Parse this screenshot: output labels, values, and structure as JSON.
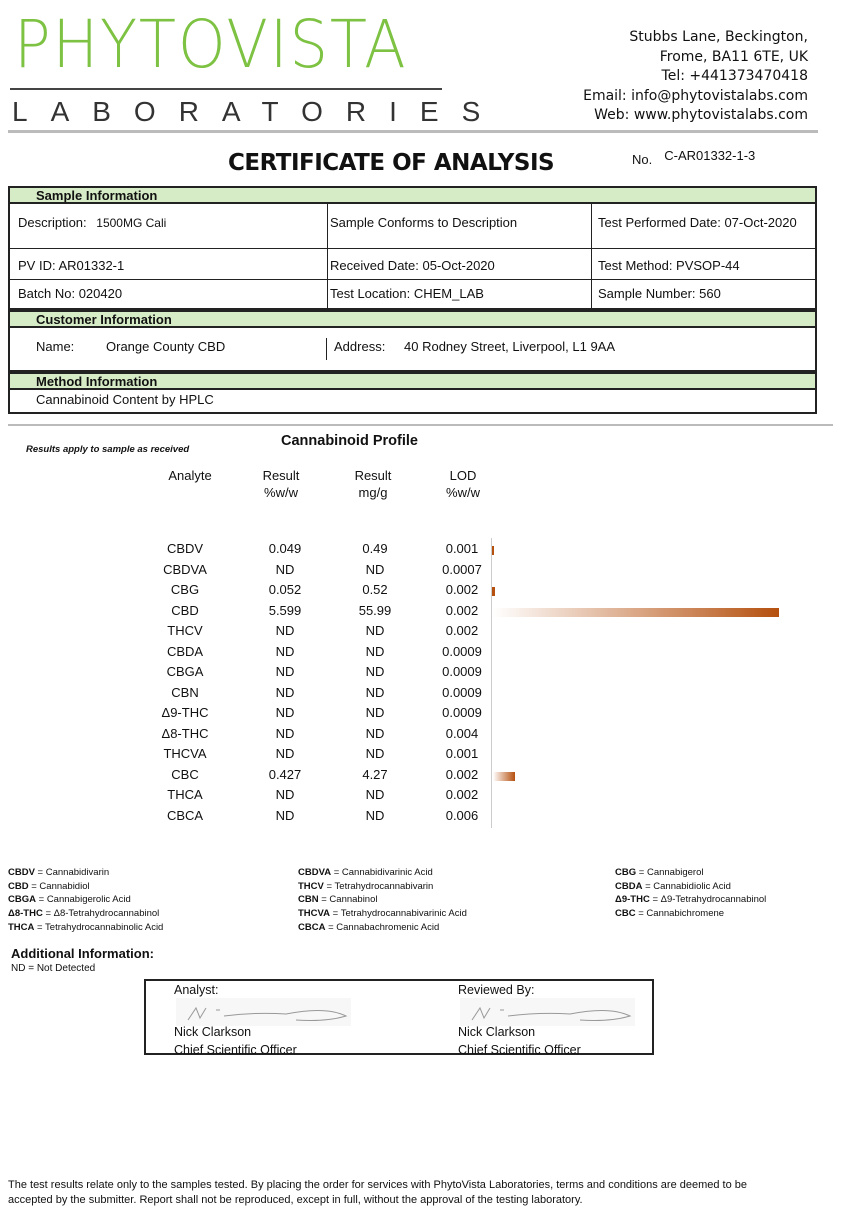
{
  "header": {
    "logo_main": "PHYTOVISTA",
    "logo_sub": "LABORATORIES",
    "address": [
      "Stubbs Lane, Beckington,",
      "Frome, BA11 6TE, UK",
      "Tel: +441373470418",
      "Email: info@phytovistalabs.com",
      "Web: www.phytovistalabs.com"
    ]
  },
  "title": "CERTIFICATE OF ANALYSIS",
  "cert_no_label": "No.",
  "cert_no": "C-AR01332-1-3",
  "sample": {
    "heading": "Sample Information",
    "description": "Description:",
    "description_value": "1500MG Cali",
    "conforms": "Sample Conforms to Description",
    "test_date": "Test Performed Date: 07-Oct-2020",
    "pv_id": "PV ID: AR01332-1",
    "received": "Received Date:  05-Oct-2020",
    "method": "Test Method: PVSOP-44",
    "batch": "Batch No: 020420",
    "location": "Test Location: CHEM_LAB",
    "sample_number": "Sample Number:  560"
  },
  "customer": {
    "heading": "Customer Information",
    "name_label": "Name:",
    "name": "Orange County CBD",
    "address_label": "Address:",
    "address": "40 Rodney Street, Liverpool, L1 9AA"
  },
  "method": {
    "heading": "Method Information",
    "value": "Cannabinoid Content by HPLC"
  },
  "profile": {
    "note": "Results apply to sample as received",
    "title": "Cannabinoid Profile",
    "columns": [
      "Analyte",
      "Result\n%w/w",
      "Result\nmg/g",
      "LOD\n%w/w"
    ],
    "bar_color": "#b5500f",
    "rows": [
      {
        "analyte": "CBDV",
        "pct": "0.049",
        "mg": "0.49",
        "lod": "0.001",
        "value": 0.049
      },
      {
        "analyte": "CBDVA",
        "pct": "ND",
        "mg": "ND",
        "lod": "0.0007",
        "value": 0
      },
      {
        "analyte": "CBG",
        "pct": "0.052",
        "mg": "0.52",
        "lod": "0.002",
        "value": 0.052
      },
      {
        "analyte": "CBD",
        "pct": "5.599",
        "mg": "55.99",
        "lod": "0.002",
        "value": 5.599
      },
      {
        "analyte": "THCV",
        "pct": "ND",
        "mg": "ND",
        "lod": "0.002",
        "value": 0
      },
      {
        "analyte": "CBDA",
        "pct": "ND",
        "mg": "ND",
        "lod": "0.0009",
        "value": 0
      },
      {
        "analyte": "CBGA",
        "pct": "ND",
        "mg": "ND",
        "lod": "0.0009",
        "value": 0
      },
      {
        "analyte": "CBN",
        "pct": "ND",
        "mg": "ND",
        "lod": "0.0009",
        "value": 0
      },
      {
        "analyte": "Δ9-THC",
        "pct": "ND",
        "mg": "ND",
        "lod": "0.0009",
        "value": 0
      },
      {
        "analyte": "Δ8-THC",
        "pct": "ND",
        "mg": "ND",
        "lod": "0.004",
        "value": 0
      },
      {
        "analyte": "THCVA",
        "pct": "ND",
        "mg": "ND",
        "lod": "0.001",
        "value": 0
      },
      {
        "analyte": "CBC",
        "pct": "0.427",
        "mg": "4.27",
        "lod": "0.002",
        "value": 0.427
      },
      {
        "analyte": "THCA",
        "pct": "ND",
        "mg": "ND",
        "lod": "0.002",
        "value": 0
      },
      {
        "analyte": "CBCA",
        "pct": "ND",
        "mg": "ND",
        "lod": "0.006",
        "value": 0
      }
    ]
  },
  "abbreviations": [
    [
      [
        "CBDV",
        "Cannabidivarin"
      ],
      [
        "CBD",
        "Cannabidiol"
      ],
      [
        "CBGA",
        "Cannabigerolic Acid"
      ],
      [
        "Δ8-THC",
        "Δ8-Tetrahydrocannabinol"
      ],
      [
        "THCA",
        "Tetrahydrocannabinolic Acid"
      ]
    ],
    [
      [
        "CBDVA",
        "Cannabidivarinic Acid"
      ],
      [
        "THCV",
        "Tetrahydrocannabivarin"
      ],
      [
        "CBN",
        "Cannabinol"
      ],
      [
        "THCVA",
        "Tetrahydrocannabivarinic Acid"
      ],
      [
        "CBCA",
        "Cannabachromenic Acid"
      ]
    ],
    [
      [
        "CBG",
        "Cannabigerol"
      ],
      [
        "CBDA",
        "Cannabidiolic Acid"
      ],
      [
        "Δ9-THC",
        "Δ9-Tetrahydrocannabinol"
      ],
      [
        "CBC",
        "Cannabichromene"
      ]
    ]
  ],
  "additional": {
    "heading": "Additional Information:",
    "text": "ND = Not Detected"
  },
  "signatures": {
    "analyst_label": "Analyst:",
    "reviewer_label": "Reviewed By:",
    "analyst_name": "Nick Clarkson",
    "analyst_title": "Chief Scientific Officer",
    "reviewer_name": "Nick Clarkson",
    "reviewer_title": "Chief Scientific Officer"
  },
  "footer": "The test results relate only to the samples tested.  By placing the order for services with PhytoVista Laboratories, terms and conditions are deemed to be accepted by the submitter. Report shall not be reproduced, except in full, without the approval of the testing laboratory."
}
